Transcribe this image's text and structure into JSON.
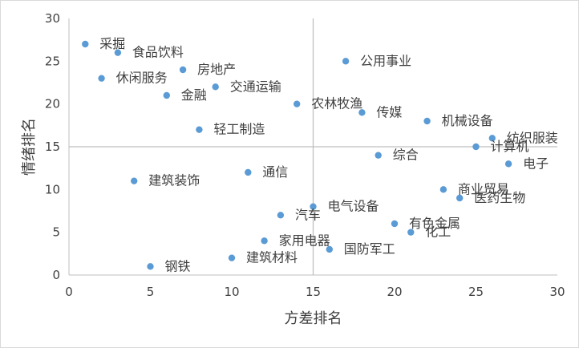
{
  "chart_data": {
    "type": "scatter",
    "title": "",
    "xlabel": "方差排名",
    "ylabel": "情绪排名",
    "xlim": [
      0,
      30
    ],
    "ylim": [
      0,
      30
    ],
    "xticks": [
      0,
      5,
      10,
      15,
      20,
      25,
      30
    ],
    "yticks": [
      0,
      5,
      10,
      15,
      20,
      25,
      30
    ],
    "grid": false,
    "reference_lines": {
      "x": 15,
      "y": 15
    },
    "marker_color": "#5b9bd5",
    "points": [
      {
        "label": "采掘",
        "x": 1,
        "y": 27
      },
      {
        "label": "食品饮料",
        "x": 3,
        "y": 26
      },
      {
        "label": "休闲服务",
        "x": 2,
        "y": 23
      },
      {
        "label": "房地产",
        "x": 7,
        "y": 24
      },
      {
        "label": "金融",
        "x": 6,
        "y": 21
      },
      {
        "label": "交通运输",
        "x": 9,
        "y": 22
      },
      {
        "label": "轻工制造",
        "x": 8,
        "y": 17
      },
      {
        "label": "建筑装饰",
        "x": 4,
        "y": 11
      },
      {
        "label": "钢铁",
        "x": 5,
        "y": 1
      },
      {
        "label": "通信",
        "x": 11,
        "y": 12
      },
      {
        "label": "建筑材料",
        "x": 10,
        "y": 2
      },
      {
        "label": "家用电器",
        "x": 12,
        "y": 4
      },
      {
        "label": "汽车",
        "x": 13,
        "y": 7
      },
      {
        "label": "农林牧渔",
        "x": 14,
        "y": 20
      },
      {
        "label": "电气设备",
        "x": 15,
        "y": 8
      },
      {
        "label": "国防军工",
        "x": 16,
        "y": 3
      },
      {
        "label": "公用事业",
        "x": 17,
        "y": 25
      },
      {
        "label": "传媒",
        "x": 18,
        "y": 19
      },
      {
        "label": "综合",
        "x": 19,
        "y": 14
      },
      {
        "label": "有色金属",
        "x": 20,
        "y": 6
      },
      {
        "label": "化工",
        "x": 21,
        "y": 5
      },
      {
        "label": "机械设备",
        "x": 22,
        "y": 18
      },
      {
        "label": "商业贸易",
        "x": 23,
        "y": 10
      },
      {
        "label": "医药生物",
        "x": 24,
        "y": 9
      },
      {
        "label": "计算机",
        "x": 25,
        "y": 15
      },
      {
        "label": "纺织服装",
        "x": 26,
        "y": 16
      },
      {
        "label": "电子",
        "x": 27,
        "y": 13
      }
    ]
  }
}
